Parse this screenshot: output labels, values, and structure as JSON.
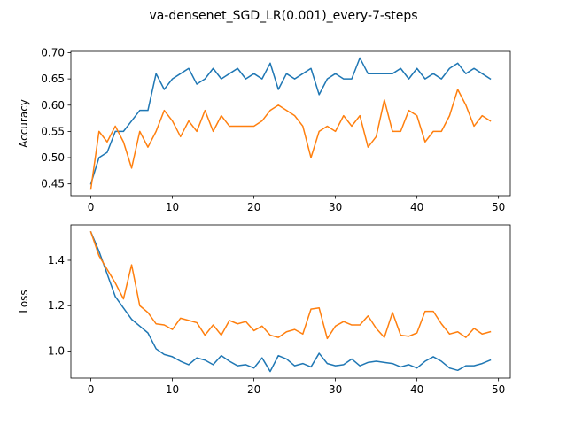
{
  "figure": {
    "title": "va-densenet_SGD_LR(0.001)_every-7-steps"
  },
  "colors": {
    "series_a": "#1f77b4",
    "series_b": "#ff7f0e"
  },
  "chart_data": [
    {
      "type": "line",
      "title": "",
      "xlabel": "",
      "ylabel": "Accuracy",
      "xlim": [
        -2.45,
        51.45
      ],
      "ylim": [
        0.4275,
        0.7025
      ],
      "xticks": [
        0,
        10,
        20,
        30,
        40,
        50
      ],
      "yticks": [
        0.45,
        0.5,
        0.55,
        0.6,
        0.65,
        0.7
      ],
      "ytick_labels": [
        "0.45",
        "0.50",
        "0.55",
        "0.60",
        "0.65",
        "0.70"
      ],
      "x": [
        0,
        1,
        2,
        3,
        4,
        5,
        6,
        7,
        8,
        9,
        10,
        11,
        12,
        13,
        14,
        15,
        16,
        17,
        18,
        19,
        20,
        21,
        22,
        23,
        24,
        25,
        26,
        27,
        28,
        29,
        30,
        31,
        32,
        33,
        34,
        35,
        36,
        37,
        38,
        39,
        40,
        41,
        42,
        43,
        44,
        45,
        46,
        47,
        48,
        49
      ],
      "series": [
        {
          "color": "#1f77b4",
          "values": [
            0.45,
            0.5,
            0.51,
            0.55,
            0.55,
            0.57,
            0.59,
            0.59,
            0.66,
            0.63,
            0.65,
            0.66,
            0.67,
            0.64,
            0.65,
            0.67,
            0.65,
            0.66,
            0.67,
            0.65,
            0.66,
            0.65,
            0.68,
            0.63,
            0.66,
            0.65,
            0.66,
            0.67,
            0.62,
            0.65,
            0.66,
            0.65,
            0.65,
            0.69,
            0.66,
            0.66,
            0.66,
            0.66,
            0.67,
            0.65,
            0.67,
            0.65,
            0.66,
            0.65,
            0.67,
            0.68,
            0.66,
            0.67,
            0.66,
            0.65
          ]
        },
        {
          "color": "#ff7f0e",
          "values": [
            0.44,
            0.55,
            0.53,
            0.56,
            0.53,
            0.48,
            0.55,
            0.52,
            0.55,
            0.59,
            0.57,
            0.54,
            0.57,
            0.55,
            0.59,
            0.55,
            0.58,
            0.56,
            0.56,
            0.56,
            0.56,
            0.57,
            0.59,
            0.6,
            0.59,
            0.58,
            0.56,
            0.5,
            0.55,
            0.56,
            0.55,
            0.58,
            0.56,
            0.58,
            0.52,
            0.54,
            0.61,
            0.55,
            0.55,
            0.59,
            0.58,
            0.53,
            0.55,
            0.55,
            0.58,
            0.63,
            0.6,
            0.56,
            0.58,
            0.57
          ]
        }
      ]
    },
    {
      "type": "line",
      "title": "",
      "xlabel": "",
      "ylabel": "Loss",
      "xlim": [
        -2.45,
        51.45
      ],
      "ylim": [
        0.881,
        1.556
      ],
      "xticks": [
        0,
        10,
        20,
        30,
        40,
        50
      ],
      "yticks": [
        1.0,
        1.2,
        1.4
      ],
      "ytick_labels": [
        "1.0",
        "1.2",
        "1.4"
      ],
      "x": [
        0,
        1,
        2,
        3,
        4,
        5,
        6,
        7,
        8,
        9,
        10,
        11,
        12,
        13,
        14,
        15,
        16,
        17,
        18,
        19,
        20,
        21,
        22,
        23,
        24,
        25,
        26,
        27,
        28,
        29,
        30,
        31,
        32,
        33,
        34,
        35,
        36,
        37,
        38,
        39,
        40,
        41,
        42,
        43,
        44,
        45,
        46,
        47,
        48,
        49
      ],
      "series": [
        {
          "color": "#1f77b4",
          "values": [
            1.525,
            1.44,
            1.34,
            1.24,
            1.19,
            1.14,
            1.11,
            1.08,
            1.01,
            0.985,
            0.975,
            0.955,
            0.94,
            0.97,
            0.96,
            0.94,
            0.98,
            0.955,
            0.935,
            0.94,
            0.925,
            0.97,
            0.91,
            0.98,
            0.965,
            0.935,
            0.945,
            0.93,
            0.99,
            0.945,
            0.935,
            0.94,
            0.965,
            0.935,
            0.95,
            0.955,
            0.95,
            0.945,
            0.93,
            0.94,
            0.925,
            0.955,
            0.975,
            0.955,
            0.925,
            0.915,
            0.935,
            0.935,
            0.945,
            0.96
          ]
        },
        {
          "color": "#ff7f0e",
          "values": [
            1.525,
            1.42,
            1.36,
            1.3,
            1.23,
            1.38,
            1.2,
            1.17,
            1.12,
            1.115,
            1.095,
            1.145,
            1.135,
            1.125,
            1.07,
            1.115,
            1.07,
            1.135,
            1.12,
            1.13,
            1.09,
            1.11,
            1.07,
            1.06,
            1.085,
            1.095,
            1.075,
            1.185,
            1.19,
            1.055,
            1.11,
            1.13,
            1.115,
            1.115,
            1.155,
            1.1,
            1.06,
            1.17,
            1.07,
            1.065,
            1.08,
            1.175,
            1.175,
            1.12,
            1.075,
            1.085,
            1.06,
            1.1,
            1.075,
            1.085
          ]
        }
      ]
    }
  ]
}
